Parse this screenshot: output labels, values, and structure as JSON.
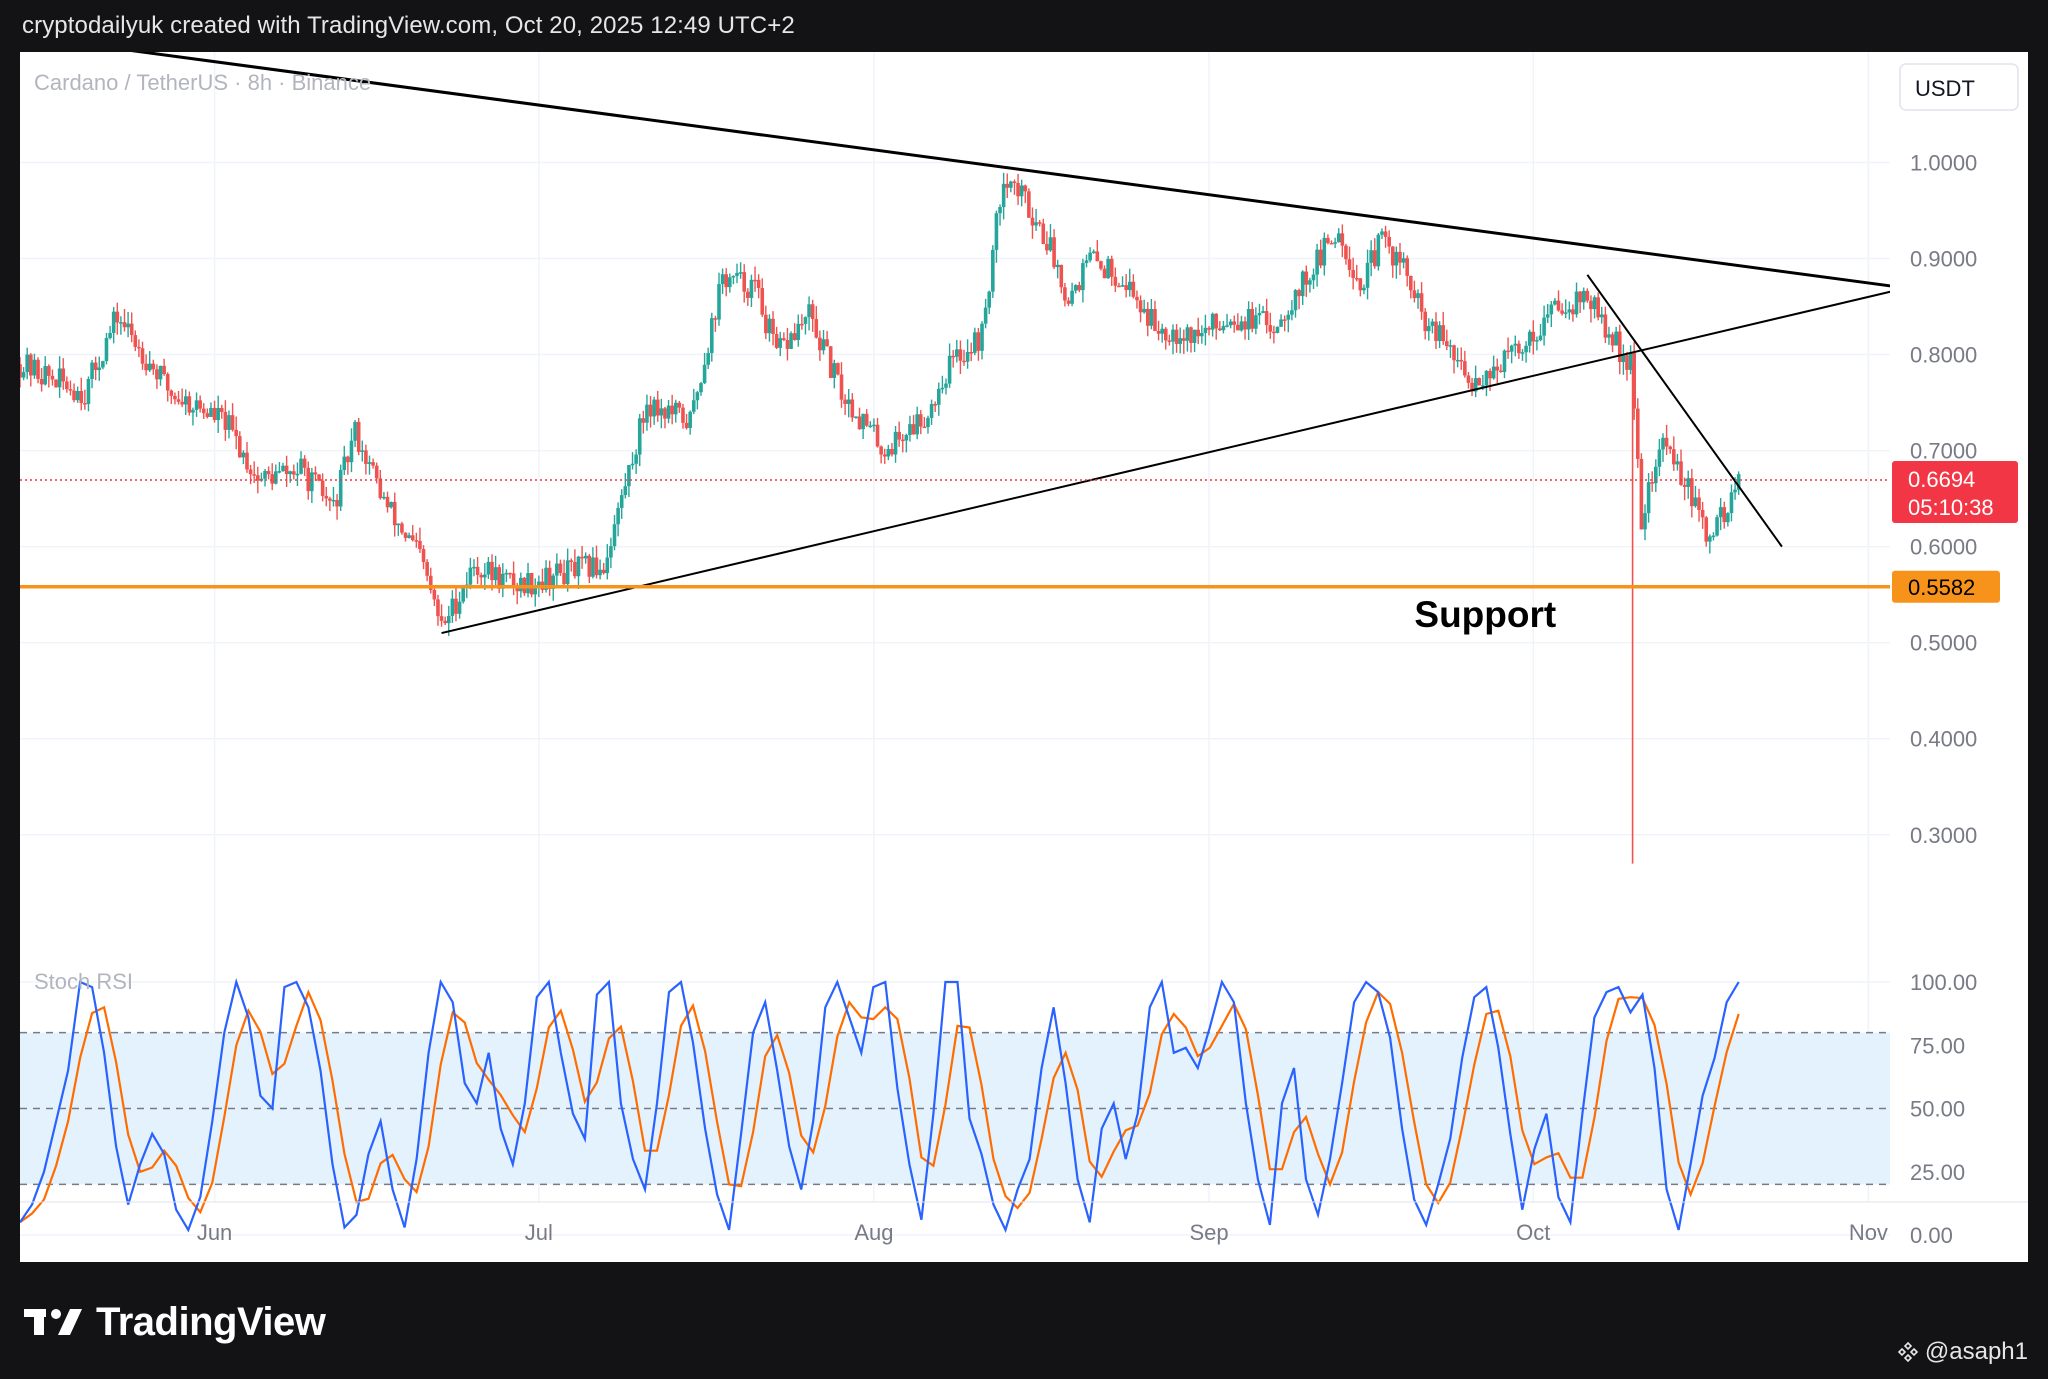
{
  "header": {
    "caption": "cryptodailyuk created with TradingView.com, Oct 20, 2025 12:49 UTC+2"
  },
  "footer": {
    "brand": "TradingView",
    "user": "@asaph1"
  },
  "chart_data": {
    "type": "candlestick",
    "symbol_title": "Cardano / TetherUS · 8h · Binance",
    "currency": "USDT",
    "y_ticks": [
      "1.0000",
      "0.9000",
      "0.8000",
      "0.7000",
      "0.6000",
      "0.5000",
      "0.4000",
      "0.3000"
    ],
    "ylim": [
      0.23,
      1.115
    ],
    "x_ticks": [
      "Jun",
      "Jul",
      "Aug",
      "Sep",
      "Oct",
      "Nov"
    ],
    "xlim": [
      "2025-05-14",
      "2025-11-03"
    ],
    "grid": true,
    "colors": {
      "up": "#26a69a",
      "down": "#ef5350",
      "support": "#f7931a",
      "stoch_k": "#2962ff",
      "stoch_d": "#ff6d00",
      "band": "#e3f2fd"
    },
    "last_price": {
      "value": "0.6694",
      "countdown": "05:10:38",
      "color": "#f23645"
    },
    "support": {
      "value": 0.5582,
      "label": "0.5582",
      "annotation": "Support"
    },
    "trendlines": [
      {
        "name": "upper",
        "from": [
          "2025-05-22",
          1.12
        ],
        "to": [
          "2025-11-04",
          0.87
        ]
      },
      {
        "name": "lower",
        "from": [
          "2025-06-22",
          0.51
        ],
        "to": [
          "2025-11-04",
          0.868
        ]
      },
      {
        "name": "downtrend",
        "from": [
          "2025-10-06",
          0.883
        ],
        "to": [
          "2025-10-24",
          0.6
        ]
      }
    ],
    "key_points": [
      [
        "2025-05-14",
        0.79
      ],
      [
        "2025-05-20",
        0.76
      ],
      [
        "2025-05-23",
        0.84
      ],
      [
        "2025-05-28",
        0.76
      ],
      [
        "2025-06-02",
        0.73
      ],
      [
        "2025-06-05",
        0.67
      ],
      [
        "2025-06-09",
        0.68
      ],
      [
        "2025-06-12",
        0.64
      ],
      [
        "2025-06-14",
        0.72
      ],
      [
        "2025-06-17",
        0.64
      ],
      [
        "2025-06-20",
        0.59
      ],
      [
        "2025-06-22",
        0.515
      ],
      [
        "2025-06-25",
        0.58
      ],
      [
        "2025-06-29",
        0.56
      ],
      [
        "2025-07-04",
        0.575
      ],
      [
        "2025-07-07",
        0.58
      ],
      [
        "2025-07-11",
        0.75
      ],
      [
        "2025-07-15",
        0.73
      ],
      [
        "2025-07-18",
        0.88
      ],
      [
        "2025-07-21",
        0.87
      ],
      [
        "2025-07-23",
        0.8
      ],
      [
        "2025-07-26",
        0.84
      ],
      [
        "2025-07-29",
        0.76
      ],
      [
        "2025-08-02",
        0.7
      ],
      [
        "2025-08-06",
        0.74
      ],
      [
        "2025-08-08",
        0.79
      ],
      [
        "2025-08-11",
        0.82
      ],
      [
        "2025-08-13",
        0.99
      ],
      [
        "2025-08-15",
        0.96
      ],
      [
        "2025-08-17",
        0.92
      ],
      [
        "2025-08-19",
        0.86
      ],
      [
        "2025-08-21",
        0.9
      ],
      [
        "2025-08-24",
        0.88
      ],
      [
        "2025-08-27",
        0.83
      ],
      [
        "2025-08-31",
        0.82
      ],
      [
        "2025-09-03",
        0.84
      ],
      [
        "2025-09-07",
        0.83
      ],
      [
        "2025-09-10",
        0.88
      ],
      [
        "2025-09-13",
        0.93
      ],
      [
        "2025-09-15",
        0.87
      ],
      [
        "2025-09-17",
        0.92
      ],
      [
        "2025-09-19",
        0.89
      ],
      [
        "2025-09-21",
        0.83
      ],
      [
        "2025-09-23",
        0.81
      ],
      [
        "2025-09-25",
        0.77
      ],
      [
        "2025-09-28",
        0.79
      ],
      [
        "2025-10-01",
        0.82
      ],
      [
        "2025-10-03",
        0.85
      ],
      [
        "2025-10-06",
        0.86
      ],
      [
        "2025-10-08",
        0.82
      ],
      [
        "2025-10-10",
        0.79
      ],
      [
        "2025-10-11",
        0.63
      ],
      [
        "2025-10-13",
        0.71
      ],
      [
        "2025-10-15",
        0.67
      ],
      [
        "2025-10-17",
        0.61
      ],
      [
        "2025-10-19",
        0.64
      ],
      [
        "2025-10-20",
        0.67
      ]
    ],
    "spike": {
      "date": "2025-10-10",
      "low": 0.27
    },
    "stoch_rsi": {
      "label": "Stoch RSI",
      "y_ticks": [
        "100.00",
        "75.00",
        "50.00",
        "25.00",
        "0.00"
      ],
      "band": [
        20,
        80
      ],
      "k": [
        5,
        12,
        25,
        45,
        65,
        100,
        98,
        72,
        35,
        12,
        28,
        40,
        32,
        10,
        2,
        15,
        45,
        80,
        100,
        86,
        55,
        50,
        98,
        100,
        90,
        65,
        28,
        3,
        8,
        32,
        45,
        18,
        3,
        30,
        72,
        100,
        92,
        60,
        52,
        72,
        42,
        28,
        52,
        94,
        100,
        72,
        48,
        38,
        95,
        100,
        52,
        30,
        18,
        52,
        96,
        100,
        76,
        42,
        16,
        2,
        40,
        80,
        92,
        65,
        35,
        18,
        45,
        90,
        100,
        86,
        72,
        98,
        100,
        58,
        28,
        6,
        48,
        100,
        100,
        46,
        32,
        12,
        2,
        18,
        30,
        66,
        90,
        60,
        22,
        5,
        42,
        52,
        30,
        48,
        90,
        100,
        72,
        74,
        66,
        82,
        100,
        92,
        52,
        22,
        4,
        52,
        66,
        22,
        8,
        30,
        60,
        92,
        100,
        96,
        78,
        42,
        14,
        4,
        20,
        38,
        70,
        94,
        98,
        74,
        40,
        10,
        34,
        48,
        15,
        5,
        48,
        86,
        96,
        98,
        88,
        95,
        66,
        18,
        2,
        28,
        55,
        70,
        92,
        100
      ]
    }
  }
}
